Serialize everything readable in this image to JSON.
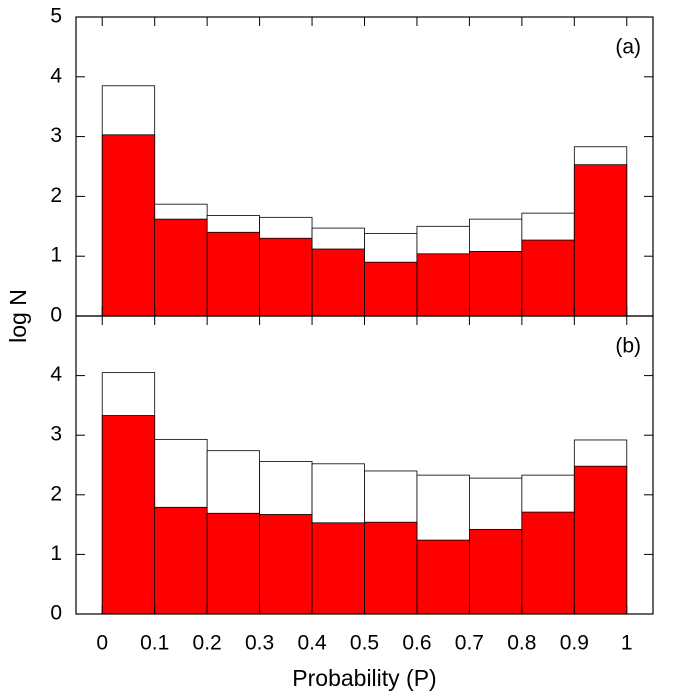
{
  "chart_data": [
    {
      "type": "histogram",
      "annotation": "(a)",
      "ylabel": "log N",
      "bins": [
        0,
        0.1,
        0.2,
        0.3,
        0.4,
        0.5,
        0.6,
        0.7,
        0.8,
        0.9,
        1
      ],
      "series": [
        {
          "color": "#ffffff",
          "values": [
            3.85,
            1.87,
            1.68,
            1.65,
            1.47,
            1.38,
            1.5,
            1.62,
            1.72,
            2.83
          ]
        },
        {
          "color": "#ff0000",
          "values": [
            3.03,
            1.62,
            1.4,
            1.3,
            1.12,
            0.9,
            1.04,
            1.08,
            1.27,
            2.53
          ]
        }
      ],
      "xlim": [
        -0.05,
        1.05
      ],
      "ylim": [
        0,
        5
      ],
      "yticks": [
        0,
        1,
        2,
        3,
        4,
        5
      ]
    },
    {
      "type": "histogram",
      "annotation": "(b)",
      "xlabel": "Probability (P)",
      "bins": [
        0,
        0.1,
        0.2,
        0.3,
        0.4,
        0.5,
        0.6,
        0.7,
        0.8,
        0.9,
        1
      ],
      "series": [
        {
          "color": "#ffffff",
          "values": [
            4.05,
            2.93,
            2.74,
            2.56,
            2.52,
            2.4,
            2.33,
            2.28,
            2.33,
            2.92
          ]
        },
        {
          "color": "#ff0000",
          "values": [
            3.33,
            1.79,
            1.69,
            1.67,
            1.53,
            1.54,
            1.24,
            1.42,
            1.71,
            2.48
          ]
        }
      ],
      "xlim": [
        -0.05,
        1.05
      ],
      "ylim": [
        0,
        5
      ],
      "yticks": [
        0,
        1,
        2,
        3,
        4
      ],
      "xticks": [
        0,
        0.1,
        0.2,
        0.3,
        0.4,
        0.5,
        0.6,
        0.7,
        0.8,
        0.9,
        1
      ]
    }
  ]
}
